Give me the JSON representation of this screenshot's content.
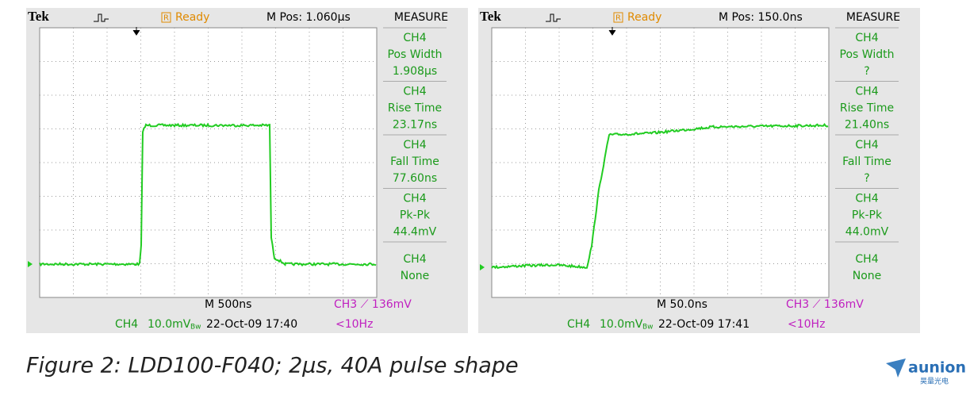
{
  "scopes": [
    {
      "brand": "Tek",
      "status_box": "R",
      "status": "Ready",
      "m_pos": "M Pos: 1.060µs",
      "measure_title": "MEASURE",
      "measurements": [
        [
          "CH4",
          "Pos Width",
          "1.908µs"
        ],
        [
          "CH4",
          "Rise Time",
          "23.17ns"
        ],
        [
          "CH4",
          "Fall Time",
          "77.60ns"
        ],
        [
          "CH4",
          "Pk-Pk",
          "44.4mV"
        ],
        [
          "CH4",
          "None"
        ]
      ],
      "timebase": "M 500ns",
      "trigger": "CH3 ⟋ 136mV",
      "channel": "CH4",
      "scale": "10.0mV",
      "bandwidth": "Bw",
      "date": "22-Oct-09 17:40",
      "frequency": "<10Hz"
    },
    {
      "brand": "Tek",
      "status_box": "R",
      "status": "Ready",
      "m_pos": "M Pos: 150.0ns",
      "measure_title": "MEASURE",
      "measurements": [
        [
          "CH4",
          "Pos Width",
          "?"
        ],
        [
          "CH4",
          "Rise Time",
          "21.40ns"
        ],
        [
          "CH4",
          "Fall Time",
          "?"
        ],
        [
          "CH4",
          "Pk-Pk",
          "44.0mV"
        ],
        [
          "CH4",
          "None"
        ]
      ],
      "timebase": "M 50.0ns",
      "trigger": "CH3 ⟋ 136mV",
      "channel": "CH4",
      "scale": "10.0mV",
      "bandwidth": "Bw",
      "date": "22-Oct-09 17:41",
      "frequency": "<10Hz"
    }
  ],
  "caption": "Figure 2: LDD100-F040; 2µs, 40A pulse shape",
  "logo": {
    "name": "aunion",
    "subtitle": "昊量光电"
  }
}
